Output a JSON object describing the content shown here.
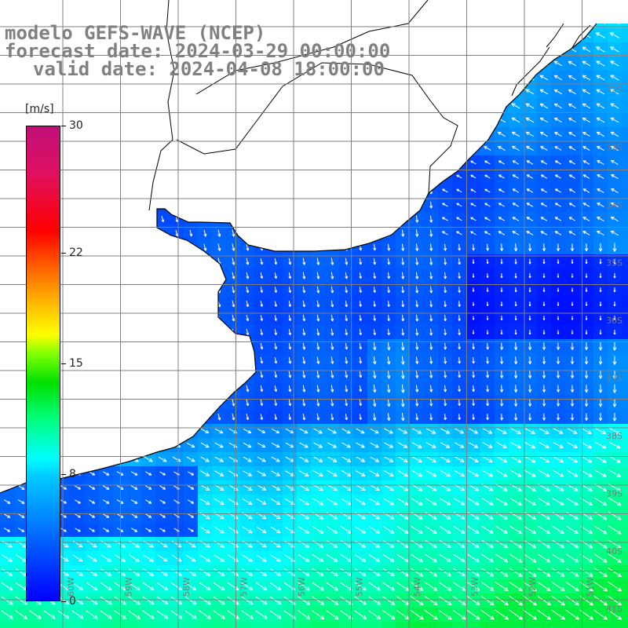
{
  "header": {
    "line1": "modelo GEFS-WAVE (NCEP)",
    "line2": "forecast date: 2024-03-29 00:00:00",
    "line3": "valid date: 2024-04-08 18:00:00"
  },
  "colorbar": {
    "units": "[m/s]",
    "min": 0,
    "max": 30,
    "labels": [
      "0",
      "8",
      "15",
      "22",
      "30"
    ],
    "colors": [
      "#0000ff",
      "#00ffff",
      "#00e000",
      "#ffff00",
      "#ff0000",
      "#c0107a"
    ]
  },
  "map": {
    "land_color": "#ffffff",
    "coast_color": "#000000",
    "grid_color": "#808080",
    "lat_labels": [
      "32S",
      "33S",
      "34S",
      "35S",
      "36S",
      "37S",
      "38S",
      "39S",
      "40S",
      "41S"
    ],
    "lon_labels": [
      "60W",
      "59W",
      "58W",
      "57W",
      "56W",
      "55W",
      "54W",
      "53W",
      "52W",
      "51W"
    ]
  }
}
